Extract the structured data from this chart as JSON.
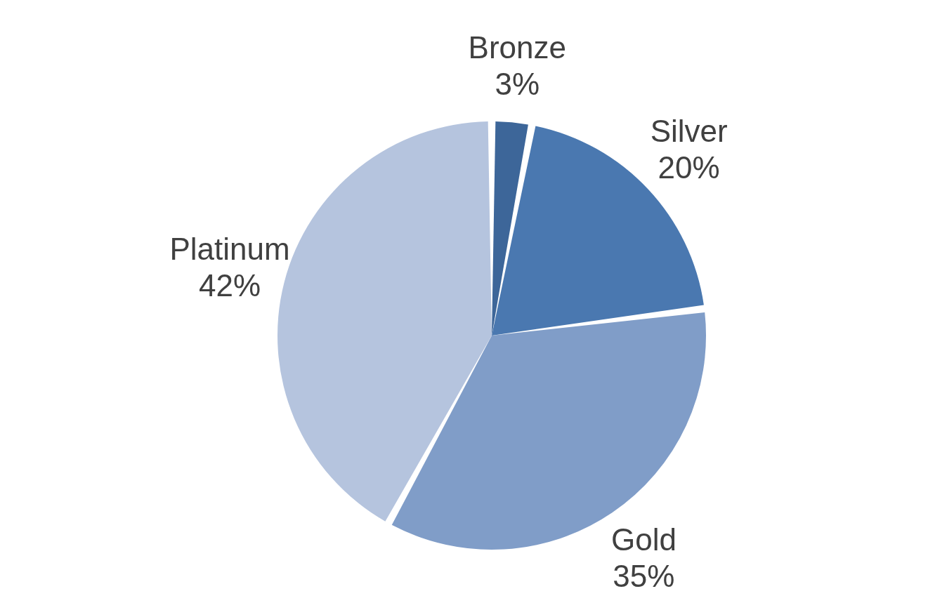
{
  "chart_data": {
    "type": "pie",
    "categories": [
      "Bronze",
      "Silver",
      "Gold",
      "Platinum"
    ],
    "values": [
      3,
      20,
      35,
      42
    ],
    "value_labels": [
      "3%",
      "20%",
      "35%",
      "42%"
    ],
    "colors": [
      "#3d6699",
      "#4a78b0",
      "#809dc8",
      "#b5c4de"
    ]
  }
}
